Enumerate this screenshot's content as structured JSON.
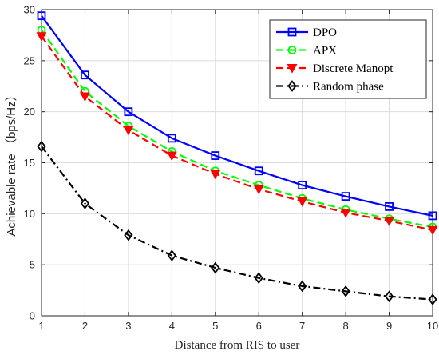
{
  "chart_data": {
    "type": "line",
    "title": "",
    "xlabel": "Distance from RIS to user",
    "ylabel": "Achievable rate （bps/Hz）",
    "x": [
      1,
      2,
      3,
      4,
      5,
      6,
      7,
      8,
      9,
      10
    ],
    "xlim": [
      1,
      10
    ],
    "ylim": [
      0,
      30
    ],
    "xticks": [
      "1",
      "2",
      "3",
      "4",
      "5",
      "6",
      "7",
      "8",
      "9",
      "10"
    ],
    "yticks": [
      "0",
      "5",
      "10",
      "15",
      "20",
      "25",
      "30"
    ],
    "grid": true,
    "legend_position": "top-right",
    "series": [
      {
        "name": "DPO",
        "color": "#0000ff",
        "line_style": "solid",
        "marker": "square",
        "values": [
          29.4,
          23.6,
          20.0,
          17.4,
          15.7,
          14.2,
          12.8,
          11.7,
          10.7,
          9.8
        ]
      },
      {
        "name": "APX",
        "color": "#00ff00",
        "line_style": "dashed",
        "marker": "circle",
        "values": [
          28.0,
          22.0,
          18.6,
          16.1,
          14.2,
          12.8,
          11.5,
          10.4,
          9.5,
          8.7
        ]
      },
      {
        "name": "Discrete Manopt",
        "color": "#ff0000",
        "line_style": "dashed",
        "marker": "triangle-down",
        "values": [
          27.4,
          21.5,
          18.2,
          15.7,
          13.9,
          12.4,
          11.2,
          10.1,
          9.3,
          8.4
        ]
      },
      {
        "name": "Random phase",
        "color": "#000000",
        "line_style": "dash-dot",
        "marker": "diamond",
        "values": [
          16.6,
          11.0,
          7.9,
          5.9,
          4.7,
          3.7,
          2.9,
          2.4,
          1.9,
          1.6
        ]
      }
    ]
  }
}
